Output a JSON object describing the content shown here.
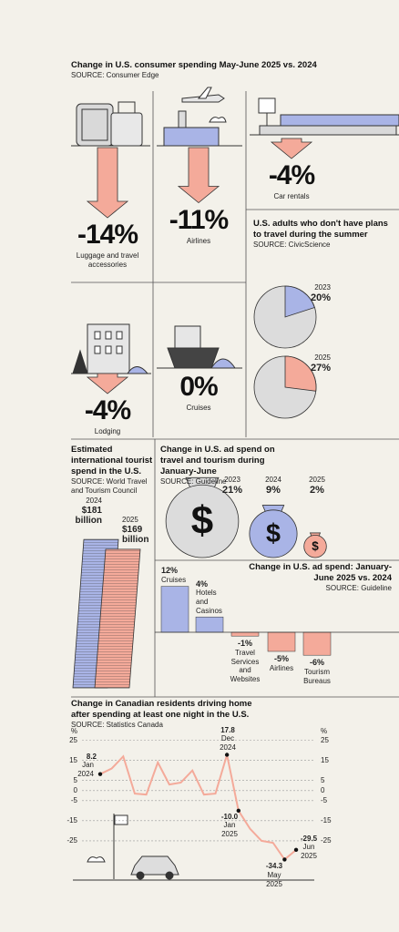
{
  "chart_data": [
    {
      "type": "arrow",
      "title": "Change in U.S. consumer spending May-June 2025 vs. 2024",
      "source": "SOURCE: Consumer Edge",
      "categories": [
        "Luggage and travel accessories",
        "Airlines",
        "Car rentals",
        "Lodging",
        "Cruises"
      ],
      "values": [
        -14,
        -11,
        -4,
        -4,
        0
      ],
      "value_labels": [
        "-14%",
        "-11%",
        "-4%",
        "-4%",
        "0%"
      ],
      "color": "#f4aa9a"
    },
    {
      "type": "pie",
      "title": "U.S. adults who don't have plans to travel during the summer",
      "source": "SOURCE: CivicScience",
      "categories": [
        "2023",
        "2025"
      ],
      "values": [
        20,
        27
      ],
      "value_labels": [
        "20%",
        "27%"
      ],
      "colors": [
        "#a9b4e6",
        "#f4aa9a"
      ]
    },
    {
      "type": "bar",
      "title": "Estimated international tourist spend in the U.S.",
      "source": "SOURCE: World Travel and Tourism Council",
      "categories": [
        "2024",
        "2025"
      ],
      "values": [
        181,
        169
      ],
      "value_labels": [
        "$181 billion",
        "$169 billion"
      ],
      "colors": [
        "#a9b4e6",
        "#f4aa9a"
      ]
    },
    {
      "type": "bubble",
      "title": "Change in U.S. ad spend on travel and tourism during January-June",
      "source": "SOURCE: Guideline",
      "categories": [
        "2023",
        "2024",
        "2025"
      ],
      "values": [
        21,
        9,
        2
      ],
      "value_labels": [
        "21%",
        "9%",
        "2%"
      ],
      "symbol": "$",
      "colors": [
        "#dcdcdc",
        "#a9b4e6",
        "#f4aa9a"
      ]
    },
    {
      "type": "bar",
      "title": "Change in U.S. ad spend: January-June 2025 vs. 2024",
      "source": "SOURCE: Guideline",
      "categories": [
        "Cruises",
        "Hotels and Casinos",
        "Travel Services and Websites",
        "Airlines",
        "Tourism Bureaus"
      ],
      "values": [
        12,
        4,
        -1,
        -5,
        -6
      ],
      "value_labels": [
        "12%",
        "4%",
        "-1%",
        "-5%",
        "-6%"
      ],
      "colors": [
        "#a9b4e6",
        "#a9b4e6",
        "#f4aa9a",
        "#f4aa9a",
        "#f4aa9a"
      ]
    },
    {
      "type": "line",
      "title": "Change in Canadian residents driving home after spending at least one night in the U.S.",
      "source": "SOURCE: Statistics Canada",
      "y_label": "%",
      "categories": [
        "Jan 2024",
        null,
        null,
        null,
        null,
        null,
        null,
        null,
        null,
        null,
        null,
        "Dec 2024",
        "Jan 2025",
        null,
        null,
        null,
        "May 2025",
        "Jun 2025"
      ],
      "values": [
        8.2,
        11,
        17,
        -1.5,
        -2,
        14,
        3,
        4,
        10,
        -2,
        -1.5,
        17.8,
        -10.0,
        -19,
        -25,
        -26,
        -34.3,
        -29.5
      ],
      "value_labels": [
        "8.2",
        null,
        null,
        null,
        null,
        null,
        null,
        null,
        null,
        null,
        null,
        "17.8",
        "-10.0",
        null,
        null,
        null,
        "-34.3",
        "-29.5"
      ],
      "ylim": [
        -40,
        28
      ],
      "yticks": [
        25,
        15,
        5,
        0,
        -5,
        -15,
        -25
      ],
      "color": "#f4aa9a",
      "grid": true
    }
  ]
}
